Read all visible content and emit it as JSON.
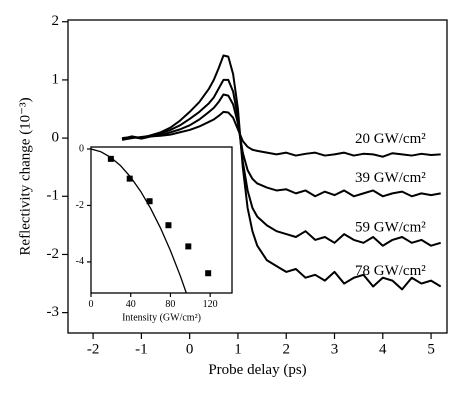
{
  "chart_data": [
    {
      "type": "line",
      "xlabel": "Probe delay (ps)",
      "ylabel": "Reflectivity change (10⁻³)",
      "xlim": [
        -2.52,
        5.33
      ],
      "ylim": [
        -3.35,
        2.03
      ],
      "xticks": [
        -2,
        -1,
        0,
        1,
        2,
        3,
        4,
        5
      ],
      "yticks": [
        -3,
        -2,
        -1,
        0,
        1,
        2
      ],
      "x": [
        -1.4,
        -1.2,
        -1.0,
        -0.8,
        -0.6,
        -0.4,
        -0.2,
        0,
        0.2,
        0.4,
        0.5,
        0.6,
        0.7,
        0.8,
        0.9,
        1.0,
        1.1,
        1.2,
        1.3,
        1.4,
        1.6,
        1.8,
        2.0,
        2.2,
        2.4,
        2.6,
        2.8,
        3.0,
        3.2,
        3.4,
        3.6,
        3.8,
        4.0,
        4.2,
        4.4,
        4.6,
        4.8,
        5.0,
        5.2
      ],
      "series": [
        {
          "name": "20 GW/cm²",
          "color": "#000000",
          "values": [
            0.0,
            0.02,
            0.0,
            0.03,
            0.04,
            0.06,
            0.1,
            0.14,
            0.2,
            0.28,
            0.32,
            0.38,
            0.45,
            0.44,
            0.35,
            0.15,
            -0.05,
            -0.15,
            -0.2,
            -0.22,
            -0.25,
            -0.28,
            -0.25,
            -0.3,
            -0.27,
            -0.25,
            -0.3,
            -0.28,
            -0.25,
            -0.3,
            -0.27,
            -0.28,
            -0.32,
            -0.26,
            -0.28,
            -0.3,
            -0.27,
            -0.29,
            -0.28
          ]
        },
        {
          "name": "39 GW/cm²",
          "color": "#000000",
          "values": [
            -0.02,
            0.02,
            -0.01,
            0.03,
            0.05,
            0.1,
            0.15,
            0.22,
            0.32,
            0.45,
            0.52,
            0.62,
            0.75,
            0.73,
            0.58,
            0.25,
            -0.25,
            -0.55,
            -0.7,
            -0.78,
            -0.85,
            -0.9,
            -0.88,
            -0.95,
            -0.9,
            -1.0,
            -0.92,
            -0.98,
            -0.9,
            -1.0,
            -0.95,
            -0.9,
            -1.0,
            -0.95,
            -0.92,
            -1.0,
            -0.95,
            -0.98,
            -0.95
          ]
        },
        {
          "name": "59 GW/cm²",
          "color": "#000000",
          "values": [
            -0.03,
            0.0,
            0.02,
            0.04,
            0.08,
            0.14,
            0.22,
            0.33,
            0.45,
            0.6,
            0.7,
            0.85,
            1.0,
            1.0,
            0.8,
            0.35,
            -0.4,
            -0.9,
            -1.2,
            -1.35,
            -1.5,
            -1.6,
            -1.65,
            -1.7,
            -1.6,
            -1.75,
            -1.7,
            -1.8,
            -1.65,
            -1.75,
            -1.8,
            -1.7,
            -1.85,
            -1.75,
            -1.7,
            -1.8,
            -1.75,
            -1.85,
            -1.8
          ]
        },
        {
          "name": "78 GW/cm²",
          "color": "#000000",
          "values": [
            -0.02,
            0.03,
            0.0,
            0.05,
            0.1,
            0.18,
            0.3,
            0.45,
            0.62,
            0.85,
            1.0,
            1.2,
            1.42,
            1.4,
            1.1,
            0.5,
            -0.5,
            -1.2,
            -1.6,
            -1.85,
            -2.1,
            -2.2,
            -2.3,
            -2.25,
            -2.4,
            -2.35,
            -2.45,
            -2.3,
            -2.5,
            -2.4,
            -2.35,
            -2.55,
            -2.4,
            -2.45,
            -2.6,
            -2.4,
            -2.5,
            -2.45,
            -2.55
          ]
        }
      ]
    },
    {
      "type": "scatter",
      "xlabel": "Intensity (GW/cm²)",
      "xlim": [
        0,
        142
      ],
      "ylim": [
        -5.1,
        0.07
      ],
      "xticks": [
        0,
        40,
        80,
        120
      ],
      "yticks": [
        -4,
        -2,
        0
      ],
      "series": [
        {
          "type": "scatter",
          "color": "#000000",
          "x": [
            20,
            39,
            59,
            78,
            98,
            118
          ],
          "values": [
            -0.35,
            -1.05,
            -1.85,
            -2.7,
            -3.45,
            -4.4
          ]
        },
        {
          "type": "line",
          "color": "#000000",
          "x": [
            0,
            10,
            20,
            30,
            40,
            50,
            60,
            70,
            80,
            90,
            96
          ],
          "values": [
            0,
            -0.1,
            -0.3,
            -0.6,
            -1.0,
            -1.5,
            -2.1,
            -2.8,
            -3.6,
            -4.5,
            -5.1
          ]
        }
      ]
    }
  ]
}
